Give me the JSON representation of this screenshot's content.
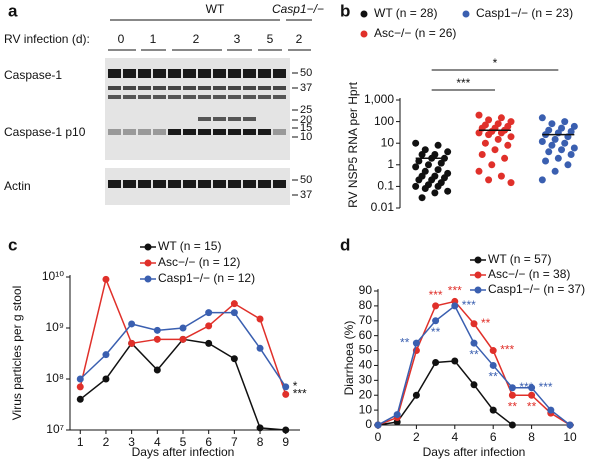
{
  "blot": {
    "panel": "a",
    "group_labels": [
      "WT",
      "Casp1−/−"
    ],
    "row_title": "RV infection (d):",
    "lanes": [
      "0",
      "1",
      "2",
      "3",
      "5",
      "2"
    ],
    "bands": [
      "Caspase-1",
      "Caspase-1 p10",
      "Actin"
    ],
    "markers": [
      50,
      37,
      25,
      20,
      15,
      10
    ],
    "actin_markers": [
      50,
      37
    ]
  },
  "chart_data": [
    {
      "panel": "b",
      "type": "strip",
      "log": true,
      "ylabel": "RV NSP5 RNA per Hprt",
      "ylim": [
        0.01,
        1000
      ],
      "yticks": [
        0.01,
        0.1,
        1,
        10,
        100,
        {
          "value": 1000,
          "label": "1,000"
        }
      ],
      "series": [
        {
          "name": "WT (n = 28)",
          "color": "#111111",
          "mean": 2,
          "values": [
            10,
            8,
            5,
            4,
            3,
            3,
            2,
            2,
            1.5,
            1.2,
            1,
            0.8,
            0.6,
            0.5,
            0.4,
            0.3,
            0.3,
            0.25,
            0.2,
            0.2,
            0.15,
            0.12,
            0.1,
            0.1,
            0.08,
            0.06,
            0.05,
            0.03
          ]
        },
        {
          "name": "Asc−/− (n = 26)",
          "color": "#e0302a",
          "mean": 40,
          "values": [
            200,
            150,
            120,
            100,
            80,
            70,
            60,
            50,
            50,
            40,
            35,
            30,
            30,
            25,
            20,
            15,
            10,
            8,
            5,
            3,
            2,
            1,
            0.5,
            0.3,
            0.2,
            0.15
          ]
        },
        {
          "name": "Casp1−/− (n = 23)",
          "color": "#3a5fb0",
          "mean": 25,
          "values": [
            150,
            100,
            80,
            60,
            50,
            40,
            35,
            30,
            25,
            20,
            15,
            12,
            10,
            8,
            6,
            5,
            4,
            3,
            2,
            1.5,
            1,
            0.5,
            0.2
          ]
        }
      ],
      "annotations": [
        {
          "text": "***",
          "from": 0,
          "to": 1
        },
        {
          "text": "*",
          "from": 0,
          "to": 2
        }
      ]
    },
    {
      "panel": "c",
      "type": "line",
      "log": true,
      "xlabel": "Days after infection",
      "ylabel": "Virus particles per g stool",
      "x": [
        1,
        2,
        3,
        4,
        5,
        6,
        7,
        8,
        9
      ],
      "xlim": [
        0.6,
        9.4
      ],
      "xticks": [
        1,
        2,
        3,
        4,
        5,
        6,
        7,
        8,
        9
      ],
      "ylim": [
        10000000,
        10000000000
      ],
      "yticks": [
        {
          "value": 10000000,
          "label": "10⁷"
        },
        {
          "value": 100000000,
          "label": "10⁸"
        },
        {
          "value": 1000000000,
          "label": "10⁹"
        },
        {
          "value": 10000000000,
          "label": "10¹⁰"
        }
      ],
      "series": [
        {
          "name": "WT (n = 15)",
          "color": "#111111",
          "values": [
            40000000,
            100000000,
            500000000,
            150000000,
            600000000,
            500000000,
            250000000,
            11000000,
            10000000
          ]
        },
        {
          "name": "Asc−/− (n = 12)",
          "color": "#e0302a",
          "values": [
            70000000,
            9000000000,
            500000000,
            600000000,
            600000000,
            1100000000,
            3000000000,
            1500000000,
            50000000
          ]
        },
        {
          "name": "Casp1−/− (n = 12)",
          "color": "#3a5fb0",
          "values": [
            100000000,
            300000000,
            1200000000,
            900000000,
            1000000000,
            2000000000,
            2000000000,
            400000000,
            70000000
          ]
        }
      ],
      "annotations": [
        {
          "text": "*",
          "series": 2,
          "point": 8,
          "pos": "right",
          "color": "#111111"
        },
        {
          "text": "***",
          "series": 1,
          "point": 8,
          "pos": "right",
          "color": "#111111"
        }
      ]
    },
    {
      "panel": "d",
      "type": "line",
      "log": false,
      "xlabel": "Days after infection",
      "ylabel": "Diarrhoea (%)",
      "x": [
        0,
        1,
        2,
        3,
        4,
        5,
        6,
        7,
        8,
        9,
        10
      ],
      "xlim": [
        0,
        10
      ],
      "xticks": [
        0,
        2,
        4,
        6,
        8,
        10
      ],
      "ylim": [
        0,
        90
      ],
      "yticks": [
        0,
        10,
        20,
        30,
        40,
        50,
        60,
        70,
        80,
        90
      ],
      "series": [
        {
          "name": "WT (n = 57)",
          "color": "#111111",
          "values": [
            0,
            2,
            20,
            42,
            43,
            27,
            10,
            0,
            null,
            null,
            null
          ]
        },
        {
          "name": "Asc−/− (n = 38)",
          "color": "#e0302a",
          "values": [
            0,
            5,
            50,
            80,
            83,
            68,
            50,
            20,
            20,
            8,
            0
          ]
        },
        {
          "name": "Casp1−/− (n = 37)",
          "color": "#3a5fb0",
          "values": [
            0,
            7,
            55,
            70,
            80,
            55,
            40,
            25,
            25,
            10,
            0
          ]
        }
      ],
      "annotations": [
        {
          "text": "***",
          "series": 1,
          "point": 3,
          "pos": "above",
          "color": "#e0302a"
        },
        {
          "text": "***",
          "series": 1,
          "point": 4,
          "pos": "above",
          "color": "#e0302a"
        },
        {
          "text": "***",
          "series": 2,
          "point": 4,
          "pos": "right",
          "color": "#3a5fb0"
        },
        {
          "text": "**",
          "series": 2,
          "point": 2,
          "pos": "left",
          "color": "#3a5fb0"
        },
        {
          "text": "**",
          "series": 2,
          "point": 3,
          "pos": "below",
          "color": "#3a5fb0"
        },
        {
          "text": "**",
          "series": 1,
          "point": 5,
          "pos": "right",
          "color": "#e0302a"
        },
        {
          "text": "**",
          "series": 2,
          "point": 5,
          "pos": "below",
          "color": "#3a5fb0"
        },
        {
          "text": "***",
          "series": 1,
          "point": 6,
          "pos": "right",
          "color": "#e0302a"
        },
        {
          "text": "**",
          "series": 2,
          "point": 6,
          "pos": "below",
          "color": "#3a5fb0"
        },
        {
          "text": "***",
          "series": 2,
          "point": 7,
          "pos": "right",
          "color": "#3a5fb0"
        },
        {
          "text": "***",
          "series": 2,
          "point": 8,
          "pos": "right",
          "color": "#3a5fb0"
        },
        {
          "text": "**",
          "series": 1,
          "point": 7,
          "pos": "below",
          "color": "#e0302a"
        },
        {
          "text": "**",
          "series": 1,
          "point": 8,
          "pos": "below",
          "color": "#e0302a"
        }
      ]
    }
  ]
}
